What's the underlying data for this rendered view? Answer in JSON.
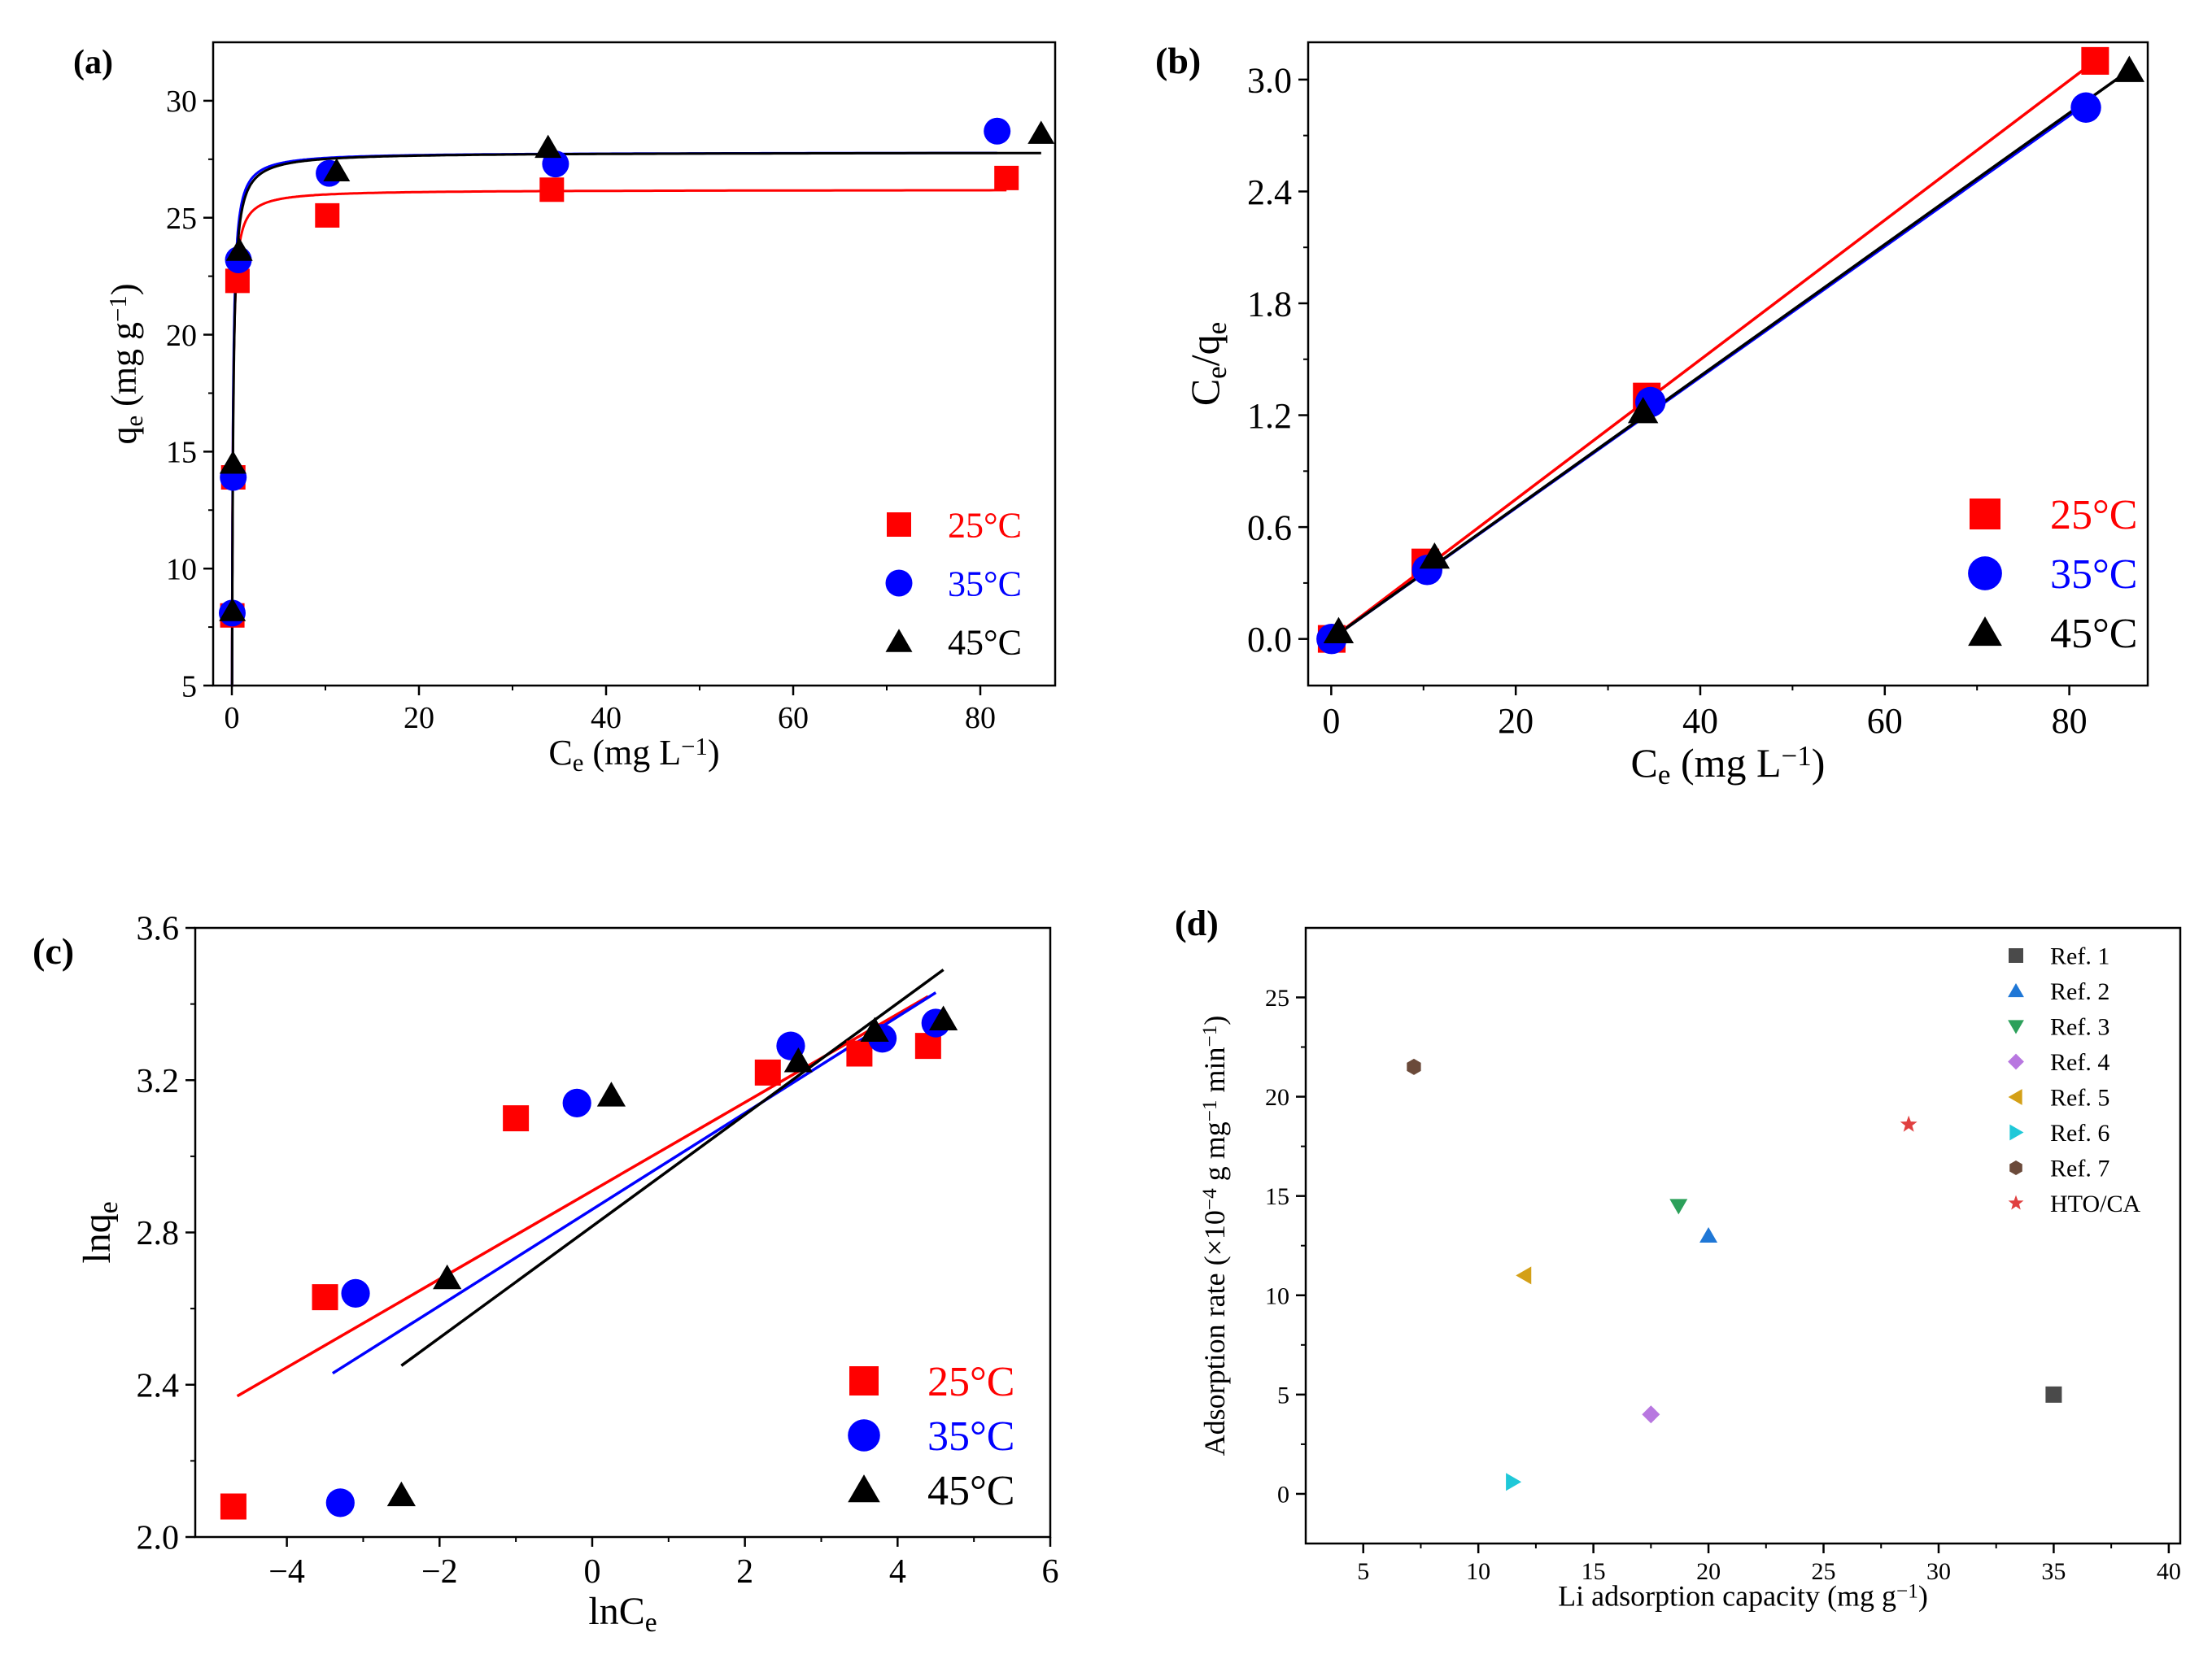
{
  "figure": {
    "panel_labels": [
      "(a)",
      "(b)",
      "(c)",
      "(d)"
    ]
  },
  "chart_data": [
    {
      "panel": "(a)",
      "type": "scatter",
      "xlabel": "C_e (mg L^-1)",
      "ylabel": "q_e (mg g^-1)",
      "xlim": [
        -2,
        88
      ],
      "ylim": [
        5,
        32.5
      ],
      "xticks": [
        0,
        20,
        40,
        60,
        80
      ],
      "yticks": [
        5,
        10,
        15,
        20,
        25,
        30
      ],
      "legend_position": "bottom-right",
      "series": [
        {
          "name": "25°C",
          "color": "#ff0000",
          "marker": "square",
          "points": [
            [
              0.05,
              8.0
            ],
            [
              0.15,
              13.9
            ],
            [
              0.6,
              22.3
            ],
            [
              10.2,
              25.1
            ],
            [
              34.2,
              26.2
            ],
            [
              82.8,
              26.7
            ]
          ],
          "curve": {
            "qmax": 26.2,
            "K": 12.5
          }
        },
        {
          "name": "35°C",
          "color": "#0000ff",
          "marker": "circle",
          "points": [
            [
              0.04,
              8.1
            ],
            [
              0.15,
              13.9
            ],
            [
              0.7,
              23.2
            ],
            [
              10.4,
              26.9
            ],
            [
              34.6,
              27.3
            ],
            [
              81.8,
              28.7
            ]
          ],
          "curve": {
            "qmax": 27.8,
            "K": 11.2
          }
        },
        {
          "name": "45°C",
          "color": "#000000",
          "marker": "triangle",
          "points": [
            [
              0.06,
              8.2
            ],
            [
              0.12,
              14.5
            ],
            [
              0.8,
              23.6
            ],
            [
              11.2,
              27.0
            ],
            [
              33.8,
              28.0
            ],
            [
              86.5,
              28.6
            ]
          ],
          "curve": {
            "qmax": 27.8,
            "K": 9.5
          }
        }
      ]
    },
    {
      "panel": "(b)",
      "type": "scatter",
      "xlabel": "C_e (mg L^-1)",
      "ylabel": "C_e/q_e",
      "xlim": [
        -2.5,
        88.5
      ],
      "ylim": [
        -0.25,
        3.2
      ],
      "xticks": [
        0,
        20,
        40,
        60,
        80
      ],
      "yticks": [
        0.0,
        0.6,
        1.2,
        1.8,
        2.4,
        3.0
      ],
      "legend_position": "bottom-right",
      "series": [
        {
          "name": "25°C",
          "color": "#ff0000",
          "marker": "square",
          "points": [
            [
              0.05,
              0.0
            ],
            [
              10.2,
              0.41
            ],
            [
              34.2,
              1.3
            ],
            [
              82.8,
              3.1
            ]
          ],
          "fit_line": [
            [
              0,
              0.0
            ],
            [
              82.8,
              3.1
            ]
          ]
        },
        {
          "name": "35°C",
          "color": "#0000ff",
          "marker": "circle",
          "points": [
            [
              0.04,
              0.0
            ],
            [
              10.4,
              0.37
            ],
            [
              34.6,
              1.27
            ],
            [
              81.8,
              2.85
            ]
          ],
          "fit_line": [
            [
              0,
              0.0
            ],
            [
              81.8,
              2.87
            ]
          ]
        },
        {
          "name": "45°C",
          "color": "#000000",
          "marker": "triangle",
          "points": [
            [
              0.8,
              0.04
            ],
            [
              11.2,
              0.44
            ],
            [
              33.8,
              1.22
            ],
            [
              86.5,
              3.05
            ]
          ],
          "fit_line": [
            [
              0,
              0.0
            ],
            [
              86.5,
              3.05
            ]
          ]
        }
      ]
    },
    {
      "panel": "(c)",
      "type": "scatter",
      "xlabel": "lnC_e",
      "ylabel": "lnq_e",
      "xlim": [
        -5.2,
        6.0
      ],
      "ylim": [
        2.0,
        3.6
      ],
      "xticks": [
        -4,
        -2,
        0,
        2,
        4,
        6
      ],
      "yticks": [
        2.0,
        2.4,
        2.8,
        3.2,
        3.6
      ],
      "legend_position": "bottom-right",
      "series": [
        {
          "name": "25°C",
          "color": "#ff0000",
          "marker": "square",
          "points": [
            [
              -4.7,
              2.08
            ],
            [
              -3.5,
              2.63
            ],
            [
              -1.0,
              3.1
            ],
            [
              2.3,
              3.22
            ],
            [
              3.5,
              3.27
            ],
            [
              4.4,
              3.29
            ]
          ],
          "fit_line": [
            [
              -4.65,
              2.37
            ],
            [
              4.4,
              3.42
            ]
          ]
        },
        {
          "name": "35°C",
          "color": "#0000ff",
          "marker": "circle",
          "points": [
            [
              -3.3,
              2.09
            ],
            [
              -3.1,
              2.64
            ],
            [
              -0.2,
              3.14
            ],
            [
              2.6,
              3.29
            ],
            [
              3.8,
              3.31
            ],
            [
              4.5,
              3.35
            ]
          ],
          "fit_line": [
            [
              -3.4,
              2.43
            ],
            [
              4.5,
              3.43
            ]
          ]
        },
        {
          "name": "45°C",
          "color": "#000000",
          "marker": "triangle",
          "points": [
            [
              -2.5,
              2.11
            ],
            [
              -1.9,
              2.68
            ],
            [
              0.25,
              3.16
            ],
            [
              2.7,
              3.25
            ],
            [
              3.7,
              3.33
            ],
            [
              4.6,
              3.36
            ]
          ],
          "fit_line": [
            [
              -2.5,
              2.45
            ],
            [
              4.6,
              3.49
            ]
          ]
        }
      ]
    },
    {
      "panel": "(d)",
      "type": "scatter",
      "xlabel": "Li adsorption capacity (mg g^-1)",
      "ylabel": "Adsorption rate (×10^-4 g mg^-1 min^-1)",
      "xlim": [
        2.5,
        40.5
      ],
      "ylim": [
        -2.5,
        28.5
      ],
      "xticks": [
        5,
        10,
        15,
        20,
        25,
        30,
        35,
        40
      ],
      "yticks": [
        0,
        5,
        10,
        15,
        20,
        25
      ],
      "legend_position": "top-right",
      "series": [
        {
          "name": "Ref. 1",
          "color": "#4a4a4a",
          "marker": "square",
          "points": [
            [
              35.0,
              5.0
            ]
          ]
        },
        {
          "name": "Ref. 2",
          "color": "#1f77d6",
          "marker": "triangle",
          "points": [
            [
              20.0,
              13.0
            ]
          ]
        },
        {
          "name": "Ref. 3",
          "color": "#2ca05a",
          "marker": "triangle-down",
          "points": [
            [
              18.7,
              14.5
            ]
          ]
        },
        {
          "name": "Ref. 4",
          "color": "#b877e0",
          "marker": "diamond",
          "points": [
            [
              17.5,
              4.0
            ]
          ]
        },
        {
          "name": "Ref. 5",
          "color": "#d4a017",
          "marker": "triangle-left",
          "points": [
            [
              12.0,
              11.0
            ]
          ]
        },
        {
          "name": "Ref. 6",
          "color": "#1fc8d8",
          "marker": "triangle-right",
          "points": [
            [
              11.5,
              0.6
            ]
          ]
        },
        {
          "name": "Ref. 7",
          "color": "#6b4a3a",
          "marker": "hexagon",
          "points": [
            [
              7.2,
              21.5
            ]
          ]
        },
        {
          "name": "HTO/CA",
          "color": "#e04040",
          "marker": "star",
          "points": [
            [
              28.7,
              18.6
            ]
          ]
        }
      ]
    }
  ]
}
